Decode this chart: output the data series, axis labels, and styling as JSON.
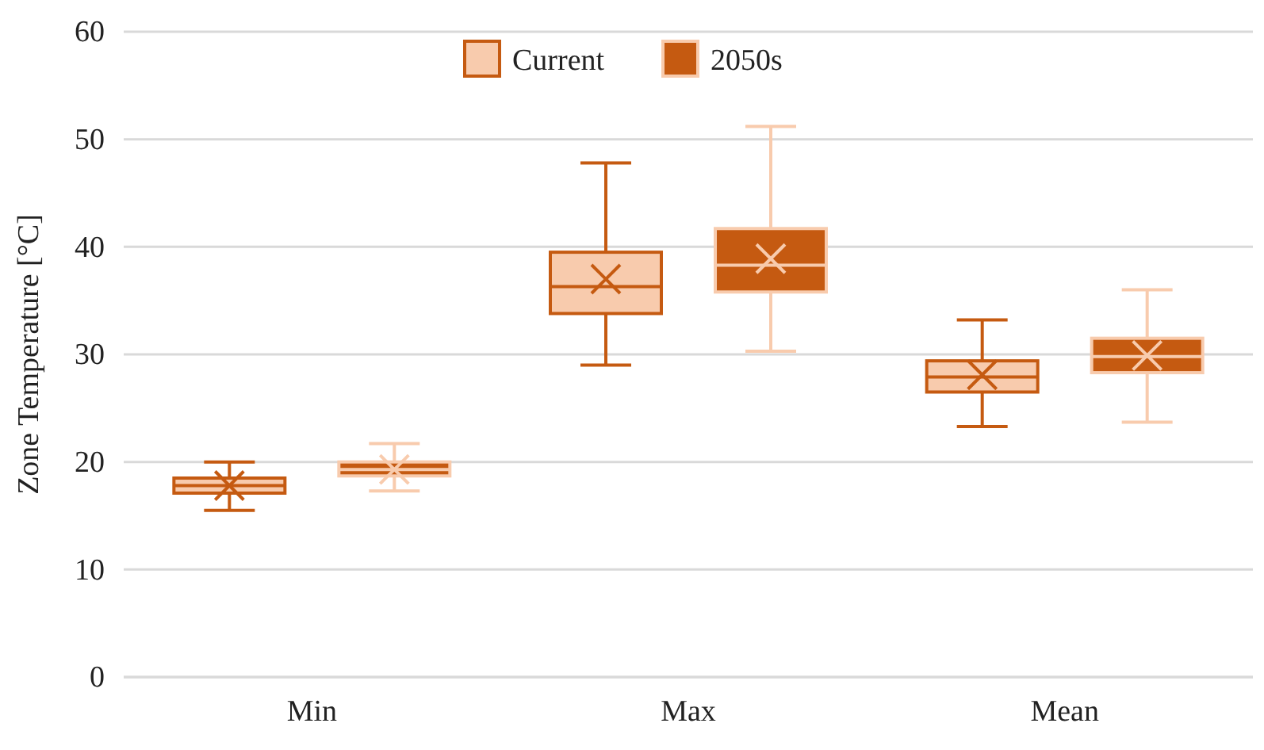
{
  "chart_data": {
    "type": "box",
    "ylabel": "Zone Temperature [°C]",
    "categories": [
      "Min",
      "Max",
      "Mean"
    ],
    "ylim": [
      0,
      60
    ],
    "yticks": [
      0,
      10,
      20,
      30,
      40,
      50,
      60
    ],
    "grid": "y",
    "legend": "top",
    "series": [
      {
        "name": "Current",
        "color": "#f8cbad",
        "boxes": [
          {
            "low": 15.5,
            "q1": 17.1,
            "median": 17.8,
            "q3": 18.5,
            "high": 20.0,
            "mean": 17.8
          },
          {
            "low": 29.0,
            "q1": 33.8,
            "median": 36.3,
            "q3": 39.5,
            "high": 47.8,
            "mean": 37.0
          },
          {
            "low": 23.3,
            "q1": 26.5,
            "median": 27.9,
            "q3": 29.4,
            "high": 33.2,
            "mean": 28.1
          }
        ]
      },
      {
        "name": "2050s",
        "color": "#c55a11",
        "boxes": [
          {
            "low": 17.3,
            "q1": 18.7,
            "median": 19.3,
            "q3": 20.0,
            "high": 21.7,
            "mean": 19.3
          },
          {
            "low": 30.3,
            "q1": 35.8,
            "median": 38.3,
            "q3": 41.7,
            "high": 51.2,
            "mean": 38.9
          },
          {
            "low": 23.7,
            "q1": 28.3,
            "median": 29.8,
            "q3": 31.5,
            "high": 36.0,
            "mean": 29.9
          }
        ]
      }
    ]
  }
}
